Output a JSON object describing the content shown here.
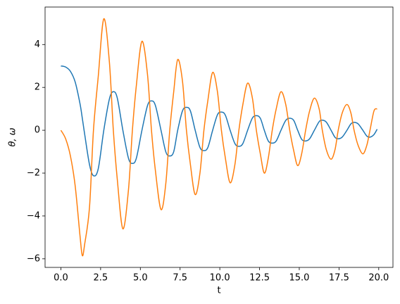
{
  "chart_data": {
    "type": "line",
    "xlabel": "t",
    "ylabel": "θ, ω",
    "x": [
      0,
      0.3,
      0.6,
      0.9,
      1.2,
      1.35,
      1.5,
      1.8,
      2.05,
      2.35,
      2.7,
      3.05,
      3.3,
      3.55,
      3.9,
      4.25,
      4.5,
      4.75,
      5.1,
      5.45,
      5.7,
      5.95,
      6.3,
      6.6,
      6.85,
      7.1,
      7.35,
      7.65,
      7.9,
      8.15,
      8.45,
      8.75,
      9.0,
      9.25,
      9.55,
      9.85,
      10.1,
      10.35,
      10.65,
      10.95,
      11.2,
      11.45,
      11.75,
      12.05,
      12.3,
      12.55,
      12.8,
      13.05,
      13.3,
      13.55,
      13.85,
      14.15,
      14.4,
      14.65,
      14.9,
      15.15,
      15.4,
      15.65,
      15.95,
      16.25,
      16.45,
      16.7,
      17.0,
      17.25,
      17.45,
      17.7,
      18.0,
      18.25,
      18.45,
      18.7,
      19.0,
      19.25,
      19.45,
      19.7,
      19.9
    ],
    "series": [
      {
        "color": "#1f77b4",
        "values": [
          3.0,
          2.95,
          2.75,
          2.25,
          1.25,
          0.55,
          -0.2,
          -1.6,
          -2.12,
          -1.8,
          0,
          1.45,
          1.8,
          1.5,
          0,
          -1.3,
          -1.55,
          -1.3,
          0,
          1.15,
          1.37,
          1.15,
          0,
          -1.0,
          -1.2,
          -1.0,
          0,
          0.9,
          1.07,
          0.9,
          0,
          -0.8,
          -0.95,
          -0.8,
          0,
          0.72,
          0.85,
          0.7,
          0,
          -0.62,
          -0.75,
          -0.62,
          0,
          0.57,
          0.68,
          0.56,
          0,
          -0.5,
          -0.6,
          -0.5,
          0,
          0.46,
          0.56,
          0.46,
          0,
          -0.42,
          -0.5,
          -0.4,
          0,
          0.4,
          0.47,
          0.38,
          0,
          -0.33,
          -0.4,
          -0.32,
          0,
          0.3,
          0.37,
          0.3,
          0,
          -0.27,
          -0.32,
          -0.2,
          0.05
        ]
      },
      {
        "color": "#ff7f0e",
        "values": [
          0,
          -0.4,
          -1.2,
          -2.6,
          -4.9,
          -5.85,
          -5.3,
          -3.6,
          0,
          2.5,
          5.2,
          3.2,
          0,
          -2.3,
          -4.6,
          -2.8,
          0,
          2.1,
          4.15,
          2.6,
          0,
          -1.9,
          -3.7,
          -2.5,
          0,
          1.8,
          3.3,
          2.3,
          0,
          -1.6,
          -3.0,
          -2.0,
          0,
          1.4,
          2.7,
          1.8,
          0,
          -1.3,
          -2.45,
          -1.6,
          0,
          1.2,
          2.2,
          1.5,
          0,
          -1.1,
          -2.0,
          -1.3,
          0,
          1.0,
          1.8,
          1.2,
          0,
          -0.95,
          -1.65,
          -1.1,
          0,
          0.9,
          1.5,
          1.0,
          0,
          -0.9,
          -1.35,
          -0.9,
          0,
          0.8,
          1.2,
          0.8,
          0,
          -0.7,
          -1.1,
          -0.7,
          0,
          0.9,
          1.0
        ]
      }
    ],
    "xlim": [
      -0.995,
      20.895
    ],
    "ylim": [
      -6.4,
      5.75
    ],
    "xticks": [
      {
        "value": 0,
        "label": "0.0"
      },
      {
        "value": 2.5,
        "label": "2.5"
      },
      {
        "value": 5,
        "label": "5.0"
      },
      {
        "value": 7.5,
        "label": "7.5"
      },
      {
        "value": 10,
        "label": "10.0"
      },
      {
        "value": 12.5,
        "label": "12.5"
      },
      {
        "value": 15,
        "label": "15.0"
      },
      {
        "value": 17.5,
        "label": "17.5"
      },
      {
        "value": 20,
        "label": "20.0"
      }
    ],
    "yticks": [
      {
        "value": -6,
        "label": "−6"
      },
      {
        "value": -4,
        "label": "−4"
      },
      {
        "value": -2,
        "label": "−2"
      },
      0,
      2,
      4
    ],
    "grid": false
  }
}
